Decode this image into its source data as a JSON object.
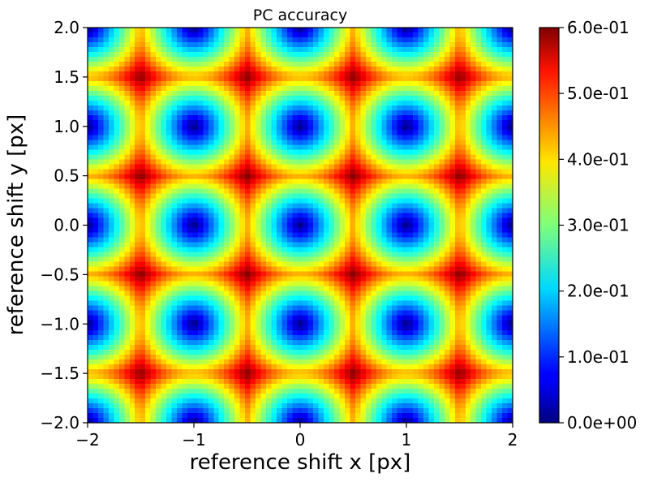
{
  "chart_data": {
    "type": "heatmap",
    "title": "PC accuracy",
    "xlabel": "reference shift x [px]",
    "ylabel": "reference shift y [px]",
    "xlim": [
      -2,
      2
    ],
    "ylim": [
      -2,
      2
    ],
    "xticks": [
      -2,
      -1,
      0,
      1,
      2
    ],
    "xtick_labels": [
      "−2",
      "−1",
      "0",
      "1",
      "2"
    ],
    "yticks": [
      2.0,
      1.5,
      1.0,
      0.5,
      0.0,
      -0.5,
      -1.0,
      -1.5,
      -2.0
    ],
    "ytick_labels": [
      "2.0",
      "1.5",
      "1.0",
      "0.5",
      "0.0",
      "−0.5",
      "−1.0",
      "−1.5",
      "−2.0"
    ],
    "grid_resolution": 81,
    "function": "accuracy depends on distance of (x, y) to the nearest integer shift; zero at integer shifts, maximum at half-integer shifts",
    "value_min": 0.0,
    "value_max": 0.6,
    "grid": false,
    "colormap": "jet",
    "colorbar": {
      "vmin": 0.0,
      "vmax": 0.6,
      "ticks": [
        0.0,
        0.1,
        0.2,
        0.3,
        0.4,
        0.5,
        0.6
      ],
      "tick_labels": [
        "0.0e+00",
        "1.0e-01",
        "2.0e-01",
        "3.0e-01",
        "4.0e-01",
        "5.0e-01",
        "6.0e-01"
      ],
      "placement": "right"
    }
  }
}
